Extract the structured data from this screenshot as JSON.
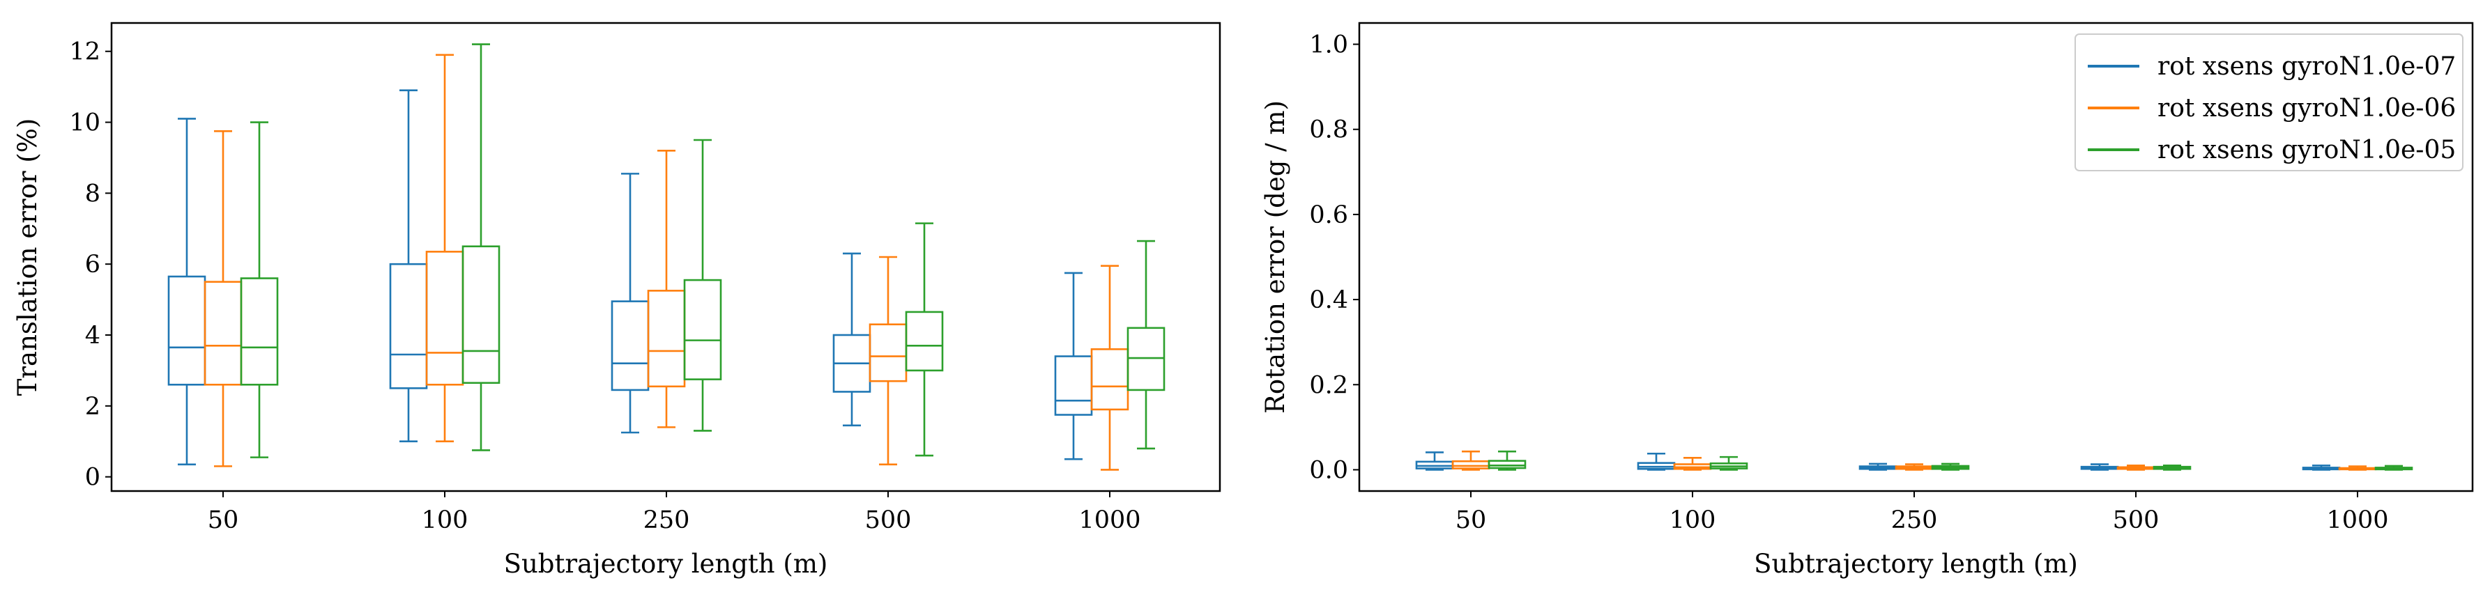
{
  "colors": {
    "series": [
      "#1f77b4",
      "#ff7f0e",
      "#2ca02c"
    ],
    "axis": "#000000"
  },
  "chart_data": [
    {
      "type": "boxplot",
      "categories": [
        "50",
        "100",
        "250",
        "500",
        "1000"
      ],
      "xlabel": "Subtrajectory length (m)",
      "ylabel": "Translation error  (%)",
      "ylim": [
        -0.4,
        12.8
      ],
      "yticks": [
        0,
        2,
        4,
        6,
        8,
        10,
        12
      ],
      "ytick_labels": [
        "0",
        "2",
        "4",
        "6",
        "8",
        "10",
        "12"
      ],
      "legend": false,
      "series": [
        {
          "boxes": [
            {
              "whislo": 0.35,
              "q1": 2.6,
              "med": 3.65,
              "q3": 5.65,
              "whishi": 10.1
            },
            {
              "whislo": 1.0,
              "q1": 2.5,
              "med": 3.45,
              "q3": 6.0,
              "whishi": 10.9
            },
            {
              "whislo": 1.25,
              "q1": 2.45,
              "med": 3.2,
              "q3": 4.95,
              "whishi": 8.55
            },
            {
              "whislo": 1.45,
              "q1": 2.4,
              "med": 3.2,
              "q3": 4.0,
              "whishi": 6.3
            },
            {
              "whislo": 0.5,
              "q1": 1.75,
              "med": 2.15,
              "q3": 3.4,
              "whishi": 5.75
            }
          ]
        },
        {
          "boxes": [
            {
              "whislo": 0.3,
              "q1": 2.6,
              "med": 3.7,
              "q3": 5.5,
              "whishi": 9.75
            },
            {
              "whislo": 1.0,
              "q1": 2.6,
              "med": 3.5,
              "q3": 6.35,
              "whishi": 11.9
            },
            {
              "whislo": 1.4,
              "q1": 2.55,
              "med": 3.55,
              "q3": 5.25,
              "whishi": 9.2
            },
            {
              "whislo": 0.35,
              "q1": 2.7,
              "med": 3.4,
              "q3": 4.3,
              "whishi": 6.2
            },
            {
              "whislo": 0.2,
              "q1": 1.9,
              "med": 2.55,
              "q3": 3.6,
              "whishi": 5.95
            }
          ]
        },
        {
          "boxes": [
            {
              "whislo": 0.55,
              "q1": 2.6,
              "med": 3.65,
              "q3": 5.6,
              "whishi": 10.0
            },
            {
              "whislo": 0.75,
              "q1": 2.65,
              "med": 3.55,
              "q3": 6.5,
              "whishi": 12.2
            },
            {
              "whislo": 1.3,
              "q1": 2.75,
              "med": 3.85,
              "q3": 5.55,
              "whishi": 9.5
            },
            {
              "whislo": 0.6,
              "q1": 3.0,
              "med": 3.7,
              "q3": 4.65,
              "whishi": 7.15
            },
            {
              "whislo": 0.8,
              "q1": 2.45,
              "med": 3.35,
              "q3": 4.2,
              "whishi": 6.65
            }
          ]
        }
      ]
    },
    {
      "type": "boxplot",
      "categories": [
        "50",
        "100",
        "250",
        "500",
        "1000"
      ],
      "xlabel": "Subtrajectory length (m)",
      "ylabel": "Rotation error (deg / m)",
      "ylim": [
        -0.05,
        1.05
      ],
      "yticks": [
        0.0,
        0.2,
        0.4,
        0.6,
        0.8,
        1.0
      ],
      "ytick_labels": [
        "0.0",
        "0.2",
        "0.4",
        "0.6",
        "0.8",
        "1.0"
      ],
      "legend": "top-right",
      "series": [
        {
          "name": "rot xsens gyroN1.0e-07",
          "boxes": [
            {
              "whislo": 0.0,
              "q1": 0.003,
              "med": 0.009,
              "q3": 0.019,
              "whishi": 0.041
            },
            {
              "whislo": 0.0,
              "q1": 0.002,
              "med": 0.007,
              "q3": 0.016,
              "whishi": 0.038
            },
            {
              "whislo": 0.0,
              "q1": 0.002,
              "med": 0.005,
              "q3": 0.008,
              "whishi": 0.014
            },
            {
              "whislo": 0.0,
              "q1": 0.002,
              "med": 0.004,
              "q3": 0.007,
              "whishi": 0.013
            },
            {
              "whislo": 0.0,
              "q1": 0.001,
              "med": 0.003,
              "q3": 0.005,
              "whishi": 0.01
            }
          ]
        },
        {
          "name": "rot xsens gyroN1.0e-06",
          "boxes": [
            {
              "whislo": 0.0,
              "q1": 0.003,
              "med": 0.009,
              "q3": 0.02,
              "whishi": 0.043
            },
            {
              "whislo": 0.0,
              "q1": 0.002,
              "med": 0.006,
              "q3": 0.013,
              "whishi": 0.028
            },
            {
              "whislo": 0.0,
              "q1": 0.002,
              "med": 0.005,
              "q3": 0.008,
              "whishi": 0.013
            },
            {
              "whislo": 0.0,
              "q1": 0.002,
              "med": 0.004,
              "q3": 0.006,
              "whishi": 0.01
            },
            {
              "whislo": 0.0,
              "q1": 0.001,
              "med": 0.003,
              "q3": 0.004,
              "whishi": 0.008
            }
          ]
        },
        {
          "name": "rot xsens gyroN1.0e-05",
          "boxes": [
            {
              "whislo": 0.0,
              "q1": 0.004,
              "med": 0.01,
              "q3": 0.021,
              "whishi": 0.043
            },
            {
              "whislo": 0.0,
              "q1": 0.003,
              "med": 0.008,
              "q3": 0.015,
              "whishi": 0.03
            },
            {
              "whislo": 0.0,
              "q1": 0.002,
              "med": 0.006,
              "q3": 0.009,
              "whishi": 0.014
            },
            {
              "whislo": 0.0,
              "q1": 0.002,
              "med": 0.004,
              "q3": 0.007,
              "whishi": 0.01
            },
            {
              "whislo": 0.0,
              "q1": 0.001,
              "med": 0.003,
              "q3": 0.005,
              "whishi": 0.009
            }
          ]
        }
      ]
    }
  ]
}
